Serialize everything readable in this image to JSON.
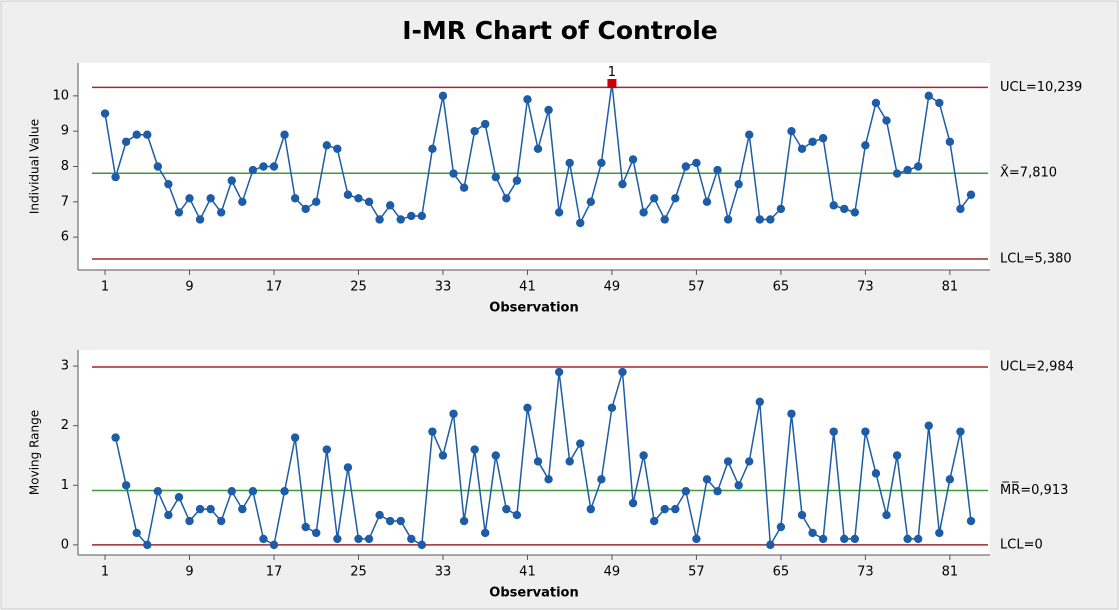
{
  "title": "I-MR Chart of Controle",
  "chart_data": [
    {
      "type": "line",
      "ylabel": "Individual Value",
      "xlabel": "Observation",
      "x": [
        1,
        2,
        3,
        4,
        5,
        6,
        7,
        8,
        9,
        10,
        11,
        12,
        13,
        14,
        15,
        16,
        17,
        18,
        19,
        20,
        21,
        22,
        23,
        24,
        25,
        26,
        27,
        28,
        29,
        30,
        31,
        32,
        33,
        34,
        35,
        36,
        37,
        38,
        39,
        40,
        41,
        42,
        43,
        44,
        45,
        46,
        47,
        48,
        49,
        50,
        51,
        52,
        53,
        54,
        55,
        56,
        57,
        58,
        59,
        60,
        61,
        62,
        63,
        64,
        65,
        66,
        67,
        68,
        69,
        70,
        71,
        72,
        73,
        74,
        75,
        76,
        77,
        78,
        79,
        80,
        81,
        82,
        83
      ],
      "values": [
        9.5,
        7.7,
        8.7,
        8.9,
        8.9,
        8.0,
        7.5,
        6.7,
        7.1,
        6.5,
        7.1,
        6.7,
        7.6,
        7.0,
        7.9,
        8.0,
        8.0,
        8.9,
        7.1,
        6.8,
        7.0,
        8.6,
        8.5,
        7.2,
        7.1,
        7.0,
        6.5,
        6.9,
        6.5,
        6.6,
        6.6,
        8.5,
        10.0,
        7.8,
        7.4,
        9.0,
        9.2,
        7.7,
        7.1,
        7.6,
        9.9,
        8.5,
        9.6,
        6.7,
        8.1,
        6.4,
        7.0,
        8.1,
        10.35,
        7.5,
        8.2,
        6.7,
        7.1,
        6.5,
        7.1,
        8.0,
        8.1,
        7.0,
        7.9,
        6.5,
        7.5,
        8.9,
        6.5,
        6.5,
        6.8,
        9.0,
        8.5,
        8.7,
        8.8,
        6.9,
        6.8,
        6.7,
        8.6,
        9.8,
        9.3,
        7.8,
        7.9,
        8.0,
        10.0,
        9.8,
        8.7,
        6.8,
        7.2
      ],
      "color": "#1d5ca6",
      "limits": [
        {
          "label": "UCL=10,239",
          "value": 10.239,
          "color": "#a3282d"
        },
        {
          "label": "X̄=7,810",
          "value": 7.81,
          "color": "#3c9a3c"
        },
        {
          "label": "LCL=5,380",
          "value": 5.38,
          "color": "#a3282d"
        }
      ],
      "annotations": [
        {
          "x": 49,
          "text": "1",
          "color": "#d00000"
        }
      ],
      "xlim": [
        -1.56,
        84.8
      ],
      "xticks": [
        1,
        9,
        17,
        25,
        33,
        41,
        49,
        57,
        65,
        73,
        81
      ],
      "ylim": [
        5.07,
        10.93
      ],
      "yticks": [
        6,
        7,
        8,
        9,
        10
      ]
    },
    {
      "type": "line",
      "ylabel": "Moving Range",
      "xlabel": "Observation",
      "x": [
        2,
        3,
        4,
        5,
        6,
        7,
        8,
        9,
        10,
        11,
        12,
        13,
        14,
        15,
        16,
        17,
        18,
        19,
        20,
        21,
        22,
        23,
        24,
        25,
        26,
        27,
        28,
        29,
        30,
        31,
        32,
        33,
        34,
        35,
        36,
        37,
        38,
        39,
        40,
        41,
        42,
        43,
        44,
        45,
        46,
        47,
        48,
        49,
        50,
        51,
        52,
        53,
        54,
        55,
        56,
        57,
        58,
        59,
        60,
        61,
        62,
        63,
        64,
        65,
        66,
        67,
        68,
        69,
        70,
        71,
        72,
        73,
        74,
        75,
        76,
        77,
        78,
        79,
        80,
        81,
        82,
        83
      ],
      "values": [
        1.8,
        1.0,
        0.2,
        0.0,
        0.9,
        0.5,
        0.8,
        0.4,
        0.6,
        0.6,
        0.4,
        0.9,
        0.6,
        0.9,
        0.1,
        0.0,
        0.9,
        1.8,
        0.3,
        0.2,
        1.6,
        0.1,
        1.3,
        0.1,
        0.1,
        0.5,
        0.4,
        0.4,
        0.1,
        0.0,
        1.9,
        1.5,
        2.2,
        0.4,
        1.6,
        0.2,
        1.5,
        0.6,
        0.5,
        2.3,
        1.4,
        1.1,
        2.9,
        1.4,
        1.7,
        0.6,
        1.1,
        2.3,
        2.9,
        0.7,
        1.5,
        0.4,
        0.6,
        0.6,
        0.9,
        0.1,
        1.1,
        0.9,
        1.4,
        1.0,
        1.4,
        2.4,
        0.0,
        0.3,
        2.2,
        0.5,
        0.2,
        0.1,
        1.9,
        0.1,
        0.1,
        1.9,
        1.2,
        0.5,
        1.5,
        0.1,
        0.1,
        2.0,
        0.2,
        1.1,
        1.9,
        0.4
      ],
      "color": "#1d5ca6",
      "limits": [
        {
          "label": "UCL=2,984",
          "value": 2.984,
          "color": "#a3282d"
        },
        {
          "label": "M̅R̅=0,913",
          "value": 0.913,
          "color": "#3c9a3c"
        },
        {
          "label": "LCL=0",
          "value": 0,
          "color": "#a3282d"
        }
      ],
      "xlim": [
        -1.56,
        84.8
      ],
      "xticks": [
        1,
        9,
        17,
        25,
        33,
        41,
        49,
        57,
        65,
        73,
        81
      ],
      "ylim": [
        -0.17,
        3.27
      ],
      "yticks": [
        0,
        1,
        2,
        3
      ]
    }
  ]
}
